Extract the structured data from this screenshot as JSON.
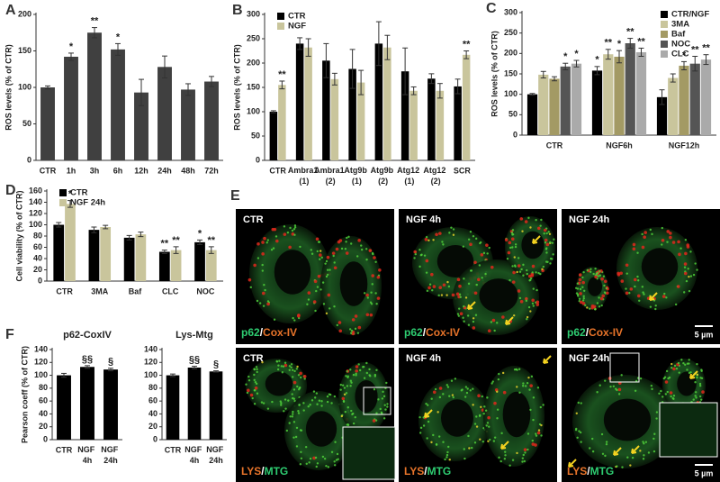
{
  "chart_data": [
    {
      "panel": "A",
      "type": "bar",
      "ylabel": "ROS levels (% of CTR)",
      "categories": [
        "CTR",
        "1h",
        "3h",
        "6h",
        "12h",
        "24h",
        "48h",
        "72h"
      ],
      "values": [
        100,
        142,
        175,
        152,
        93,
        128,
        97,
        108
      ],
      "errors": [
        2,
        5,
        7,
        8,
        18,
        15,
        8,
        7
      ],
      "annotations": [
        null,
        "*",
        "**",
        "*",
        null,
        null,
        null,
        null
      ],
      "color": "#404040",
      "ylim": [
        0,
        200
      ],
      "yticks": [
        0,
        50,
        100,
        150,
        200
      ]
    },
    {
      "panel": "B",
      "type": "bar",
      "ylabel": "ROS levels (% of CTR)",
      "categories": [
        "CTR",
        "Ambra1 (1)",
        "Ambra1 (2)",
        "Atg9b (1)",
        "Atg9b (2)",
        "Atg12 (1)",
        "Atg12 (2)",
        "SCR"
      ],
      "series": [
        {
          "name": "CTR",
          "color": "#000000",
          "values": [
            100,
            240,
            205,
            188,
            240,
            183,
            168,
            152
          ],
          "errors": [
            2,
            12,
            35,
            40,
            45,
            48,
            10,
            15
          ],
          "annotations": [
            null,
            null,
            null,
            null,
            null,
            null,
            null,
            null
          ]
        },
        {
          "name": "NGF",
          "color": "#c9c59c",
          "values": [
            155,
            232,
            167,
            160,
            232,
            143,
            143,
            217
          ],
          "errors": [
            8,
            18,
            12,
            25,
            25,
            8,
            15,
            8
          ],
          "annotations": [
            "**",
            null,
            null,
            null,
            null,
            null,
            null,
            "**"
          ]
        }
      ],
      "legend": "upper left",
      "ylim": [
        0,
        300
      ],
      "yticks": [
        0,
        50,
        100,
        150,
        200,
        250,
        300
      ]
    },
    {
      "panel": "C",
      "type": "bar",
      "ylabel": "ROS levels (% of CTR)",
      "categories": [
        "CTR",
        "NGF6h",
        "NGF12h"
      ],
      "series": [
        {
          "name": "CTR/NGF",
          "color": "#000000",
          "values": [
            100,
            158,
            93
          ],
          "errors": [
            2,
            10,
            18
          ],
          "annotations": [
            null,
            "*",
            null
          ]
        },
        {
          "name": "3MA",
          "color": "#c9c59c",
          "values": [
            148,
            198,
            140
          ],
          "errors": [
            8,
            12,
            10
          ],
          "annotations": [
            null,
            "**",
            null
          ]
        },
        {
          "name": "Baf",
          "color": "#a39a64",
          "values": [
            138,
            192,
            170
          ],
          "errors": [
            5,
            15,
            10
          ],
          "annotations": [
            null,
            "*",
            "*"
          ]
        },
        {
          "name": "NOC",
          "color": "#555555",
          "values": [
            168,
            225,
            175
          ],
          "errors": [
            8,
            12,
            18
          ],
          "annotations": [
            "*",
            "**",
            "**"
          ]
        },
        {
          "name": "CLC",
          "color": "#aaaaaa",
          "values": [
            175,
            203,
            185
          ],
          "errors": [
            8,
            10,
            12
          ],
          "annotations": [
            "*",
            "**",
            "**"
          ]
        }
      ],
      "legend": "upper right",
      "ylim": [
        0,
        300
      ],
      "yticks": [
        0,
        50,
        100,
        150,
        200,
        250,
        300
      ]
    },
    {
      "panel": "D",
      "type": "bar",
      "ylabel": "Cell viability (% of CTR)",
      "categories": [
        "CTR",
        "3MA",
        "Baf",
        "CLC",
        "NOC"
      ],
      "series": [
        {
          "name": "CTR",
          "color": "#000000",
          "values": [
            100,
            91,
            77,
            52,
            69
          ],
          "errors": [
            4,
            5,
            4,
            3,
            4
          ],
          "annotations": [
            null,
            null,
            null,
            "**",
            "*"
          ]
        },
        {
          "name": "NGF 24h",
          "color": "#c9c59c",
          "values": [
            137,
            96,
            83,
            55,
            55
          ],
          "errors": [
            6,
            3,
            4,
            6,
            6
          ],
          "annotations": [
            "*",
            null,
            null,
            "**",
            "**"
          ]
        }
      ],
      "legend": "upper left",
      "ylim": [
        0,
        160
      ],
      "yticks": [
        0,
        20,
        40,
        60,
        80,
        100,
        120,
        140,
        160
      ]
    },
    {
      "panel": "F",
      "type": "bar",
      "title": "p62-CoxIV",
      "ylabel": "Pearson coeff (% of CTR)",
      "categories": [
        "CTR",
        "NGF 4h",
        "NGF 24h"
      ],
      "values": [
        100,
        113,
        109
      ],
      "errors": [
        3,
        2,
        2
      ],
      "annotations": [
        null,
        "§§",
        "§"
      ],
      "color": "#000000",
      "ylim": [
        0,
        140
      ],
      "yticks": [
        0,
        20,
        40,
        60,
        80,
        100,
        120,
        140
      ]
    },
    {
      "type": "bar",
      "title": "Lys-Mtg",
      "categories": [
        "CTR",
        "NGF 4h",
        "NGF 24h"
      ],
      "values": [
        100,
        112,
        106
      ],
      "errors": [
        2,
        2,
        1
      ],
      "annotations": [
        null,
        "§§",
        "§"
      ],
      "color": "#000000",
      "ylim": [
        0,
        140
      ],
      "yticks": [
        0,
        20,
        40,
        60,
        80,
        100,
        120,
        140
      ]
    }
  ],
  "micrographs": {
    "panel": "E",
    "tiles": [
      {
        "condition": "CTR",
        "stain": [
          {
            "text": "p62",
            "color": "#2ecc71"
          },
          {
            "text": "/",
            "color": "#ffffff"
          },
          {
            "text": "Cox-IV",
            "color": "#e8742a"
          }
        ]
      },
      {
        "condition": "NGF 4h",
        "stain": [
          {
            "text": "p62",
            "color": "#2ecc71"
          },
          {
            "text": "/",
            "color": "#ffffff"
          },
          {
            "text": "Cox-IV",
            "color": "#e8742a"
          }
        ]
      },
      {
        "condition": "NGF 24h",
        "stain": [
          {
            "text": "p62",
            "color": "#2ecc71"
          },
          {
            "text": "/",
            "color": "#ffffff"
          },
          {
            "text": "Cox-IV",
            "color": "#e8742a"
          }
        ],
        "scale_bar": "5 µm"
      },
      {
        "condition": "CTR",
        "stain": [
          {
            "text": "LYS",
            "color": "#e8742a"
          },
          {
            "text": "/",
            "color": "#ffffff"
          },
          {
            "text": "MTG",
            "color": "#2ecc71"
          }
        ]
      },
      {
        "condition": "NGF 4h",
        "stain": [
          {
            "text": "LYS",
            "color": "#e8742a"
          },
          {
            "text": "/",
            "color": "#ffffff"
          },
          {
            "text": "MTG",
            "color": "#2ecc71"
          }
        ]
      },
      {
        "condition": "NGF 24h",
        "stain": [
          {
            "text": "LYS",
            "color": "#e8742a"
          },
          {
            "text": "/",
            "color": "#ffffff"
          },
          {
            "text": "MTG",
            "color": "#2ecc71"
          }
        ],
        "scale_bar": "5 µm"
      }
    ]
  }
}
